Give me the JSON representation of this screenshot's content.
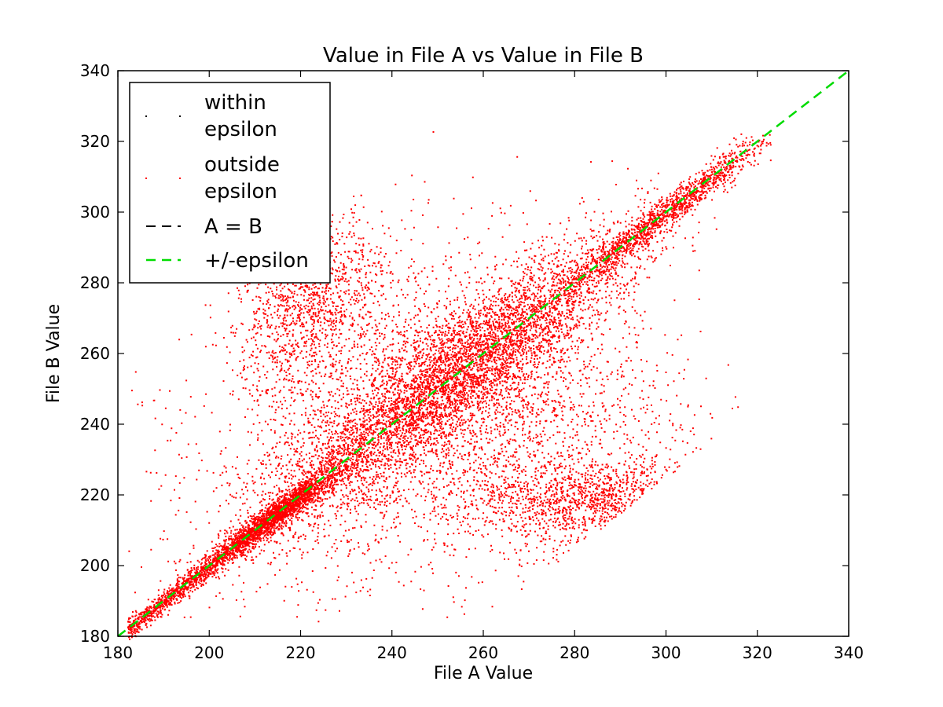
{
  "chart_data": {
    "type": "scatter",
    "title": "Value in File A vs Value in File B",
    "xlabel": "File A Value",
    "ylabel": "File B Value",
    "xlim": [
      180,
      340
    ],
    "ylim": [
      180,
      340
    ],
    "xticks": [
      180,
      200,
      220,
      240,
      260,
      280,
      300,
      320,
      340
    ],
    "yticks": [
      180,
      200,
      220,
      240,
      260,
      280,
      300,
      320,
      340
    ],
    "grid": false,
    "legend_position": "top-left",
    "colors": {
      "within": "#000000",
      "outside": "#ff0000",
      "identity": "#000000",
      "epsilon": "#00dd00"
    },
    "series": [
      {
        "name": "within\nepsilon",
        "kind": "scatter",
        "points": []
      },
      {
        "name": "outside\nepsilon",
        "kind": "scatter",
        "description_clusters": [
          {
            "center": [
              255,
              255
            ],
            "spread": [
              20,
              20
            ],
            "corr": 0.9,
            "weight": 0.34
          },
          {
            "center": [
              215,
              215
            ],
            "spread": [
              8,
              8
            ],
            "corr": 0.95,
            "weight": 0.12
          },
          {
            "center": [
              300,
              300
            ],
            "spread": [
              12,
              12
            ],
            "corr": 0.98,
            "weight": 0.1
          },
          {
            "center": [
              222,
              275
            ],
            "spread": [
              8,
              12
            ],
            "corr": 0.2,
            "weight": 0.08
          },
          {
            "center": [
              285,
              218
            ],
            "spread": [
              15,
              6
            ],
            "corr": 0.0,
            "weight": 0.1
          },
          {
            "center": [
              235,
              240
            ],
            "spread": [
              20,
              25
            ],
            "corr": 0.3,
            "weight": 0.14
          },
          {
            "center": [
              270,
              240
            ],
            "spread": [
              20,
              20
            ],
            "corr": -0.2,
            "weight": 0.12
          }
        ]
      },
      {
        "name": "A = B",
        "kind": "line",
        "x": [
          180,
          340
        ],
        "y": [
          180,
          340
        ]
      },
      {
        "name": "+/-epsilon",
        "kind": "line",
        "x": [
          180,
          340
        ],
        "y": [
          180,
          340
        ]
      }
    ]
  }
}
